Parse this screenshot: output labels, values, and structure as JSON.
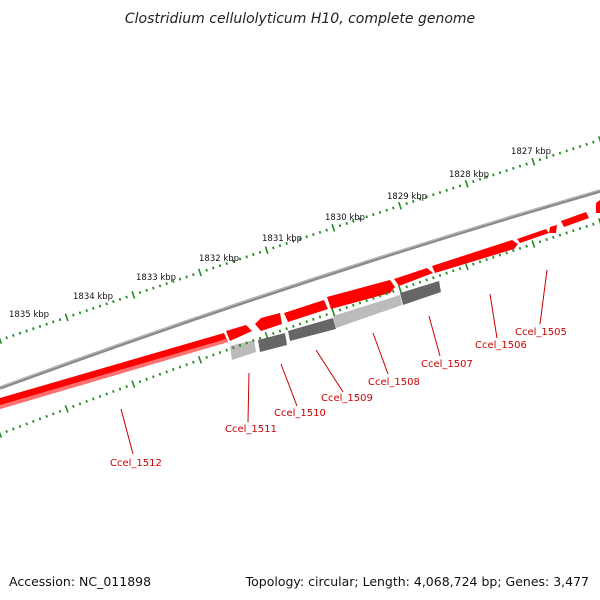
{
  "title": "Clostridium cellulolyticum H10, complete genome",
  "footer": {
    "accession": "Accession: NC_011898",
    "summary": "Topology: circular; Length: 4,068,724 bp; Genes: 3,477"
  },
  "colors": {
    "gene_red": "#ff0000",
    "gene_dark_gray": "#666666",
    "gene_light_gray": "#bbbbbb",
    "backbone": "#777777",
    "ruler_green": "#228b22",
    "label_red": "#cc0000"
  },
  "ruler_labels": [
    "1827 kbp",
    "1828 kbp",
    "1829 kbp",
    "1830 kbp",
    "1831 kbp",
    "1832 kbp",
    "1833 kbp",
    "1834 kbp",
    "1835 kbp"
  ],
  "gene_labels": [
    "Ccel_1505",
    "Ccel_1506",
    "Ccel_1507",
    "Ccel_1508",
    "Ccel_1509",
    "Ccel_1510",
    "Ccel_1511",
    "Ccel_1512"
  ]
}
